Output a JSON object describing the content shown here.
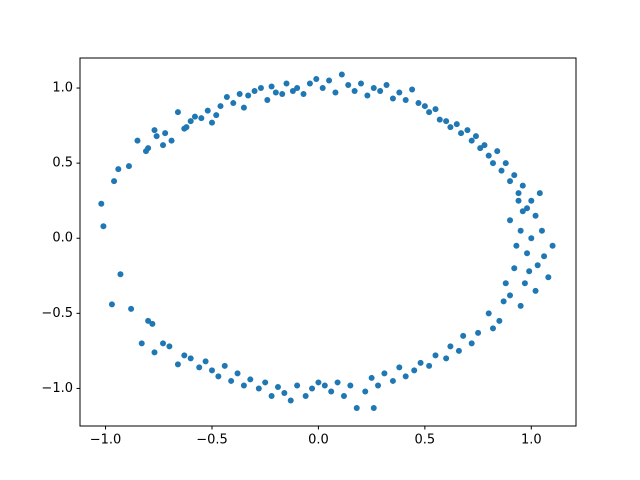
{
  "chart_data": {
    "type": "scatter",
    "color": "#1f77b4",
    "xlim": [
      -1.12,
      1.21
    ],
    "ylim": [
      -1.25,
      1.2
    ],
    "xticks": [
      {
        "value": -1,
        "label": "−1.0"
      },
      {
        "value": -0.5,
        "label": "−0.5"
      },
      {
        "value": 0,
        "label": "0.0"
      },
      {
        "value": 0.5,
        "label": "0.5"
      },
      {
        "value": 1,
        "label": "1.0"
      }
    ],
    "yticks": [
      {
        "value": -1,
        "label": "−1.0"
      },
      {
        "value": -0.5,
        "label": "−0.5"
      },
      {
        "value": 0,
        "label": "0.0"
      },
      {
        "value": 0.5,
        "label": "0.5"
      },
      {
        "value": 1,
        "label": "1.0"
      }
    ],
    "x": [
      -1.02,
      -1.01,
      -0.93,
      -0.97,
      -0.88,
      -0.94,
      -0.96,
      -0.89,
      -0.85,
      -0.81,
      -0.8,
      -0.77,
      -0.76,
      -0.73,
      -0.72,
      -0.69,
      -0.66,
      -0.63,
      -0.62,
      -0.6,
      -0.58,
      -0.55,
      -0.52,
      -0.5,
      -0.48,
      -0.46,
      -0.43,
      -0.4,
      -0.37,
      -0.35,
      -0.33,
      -0.3,
      -0.27,
      -0.24,
      -0.22,
      -0.2,
      -0.17,
      -0.15,
      -0.12,
      -0.1,
      -0.07,
      -0.04,
      -0.01,
      0.02,
      0.05,
      0.08,
      0.11,
      0.14,
      0.17,
      0.2,
      0.23,
      0.26,
      0.29,
      0.32,
      0.35,
      0.38,
      0.41,
      0.44,
      0.47,
      0.5,
      0.52,
      0.55,
      0.57,
      0.6,
      0.62,
      0.65,
      0.67,
      0.7,
      0.72,
      0.74,
      0.76,
      0.78,
      0.8,
      0.82,
      0.84,
      0.86,
      0.88,
      0.9,
      0.92,
      0.94,
      0.96,
      0.98,
      1.0,
      1.02,
      0.9,
      0.95,
      1.05,
      1.1,
      0.98,
      1.03,
      0.92,
      1.08,
      0.97,
      1.02,
      0.9,
      0.95,
      0.87,
      0.85,
      0.8,
      0.82,
      0.75,
      0.72,
      0.68,
      0.66,
      0.62,
      0.6,
      0.55,
      0.52,
      0.48,
      0.45,
      0.41,
      0.38,
      0.35,
      0.31,
      0.28,
      0.25,
      0.26,
      0.22,
      0.18,
      0.15,
      0.12,
      0.09,
      0.06,
      0.03,
      0.0,
      -0.03,
      -0.06,
      -0.1,
      -0.13,
      -0.16,
      -0.19,
      -0.22,
      -0.25,
      -0.28,
      -0.32,
      -0.35,
      -0.38,
      -0.41,
      -0.44,
      -0.47,
      -0.5,
      -0.53,
      -0.56,
      -0.6,
      -0.63,
      -0.66,
      -0.7,
      -0.73,
      -0.77,
      -0.8,
      -0.83,
      -0.78,
      1.0,
      0.96,
      1.04,
      0.93,
      0.99,
      1.06,
      0.94,
      0.88
    ],
    "values": [
      0.23,
      0.08,
      -0.24,
      -0.44,
      -0.47,
      0.46,
      0.38,
      0.48,
      0.65,
      0.58,
      0.6,
      0.72,
      0.68,
      0.62,
      0.7,
      0.65,
      0.84,
      0.73,
      0.74,
      0.78,
      0.81,
      0.8,
      0.85,
      0.77,
      0.82,
      0.88,
      0.94,
      0.9,
      0.96,
      0.87,
      0.95,
      0.98,
      1.0,
      0.92,
      1.01,
      0.97,
      0.96,
      1.03,
      0.98,
      1.0,
      0.96,
      1.03,
      1.06,
      1.0,
      1.05,
      0.97,
      1.09,
      1.02,
      0.98,
      1.03,
      0.95,
      1.0,
      0.98,
      1.02,
      0.93,
      0.97,
      0.92,
      0.99,
      0.9,
      0.88,
      0.84,
      0.86,
      0.79,
      0.78,
      0.74,
      0.76,
      0.7,
      0.72,
      0.65,
      0.68,
      0.6,
      0.62,
      0.55,
      0.5,
      0.58,
      0.45,
      0.5,
      0.38,
      0.42,
      0.3,
      0.35,
      0.2,
      0.25,
      0.15,
      0.12,
      0.05,
      0.05,
      -0.05,
      -0.1,
      -0.18,
      -0.2,
      -0.26,
      -0.3,
      -0.35,
      -0.38,
      -0.45,
      -0.42,
      -0.55,
      -0.5,
      -0.6,
      -0.63,
      -0.7,
      -0.65,
      -0.75,
      -0.72,
      -0.8,
      -0.78,
      -0.85,
      -0.83,
      -0.88,
      -0.92,
      -0.86,
      -0.95,
      -0.9,
      -0.98,
      -0.93,
      -1.13,
      -1.02,
      -1.13,
      -0.98,
      -1.05,
      -0.96,
      -1.02,
      -0.98,
      -0.96,
      -1.0,
      -1.05,
      -0.98,
      -1.08,
      -1.03,
      -0.99,
      -1.05,
      -0.96,
      -1.0,
      -0.94,
      -0.98,
      -0.9,
      -0.95,
      -0.85,
      -0.92,
      -0.88,
      -0.82,
      -0.86,
      -0.8,
      -0.78,
      -0.84,
      -0.72,
      -0.7,
      -0.76,
      -0.55,
      -0.7,
      -0.57,
      0.0,
      0.18,
      0.3,
      -0.05,
      -0.22,
      -0.12,
      0.25,
      -0.3
    ]
  }
}
